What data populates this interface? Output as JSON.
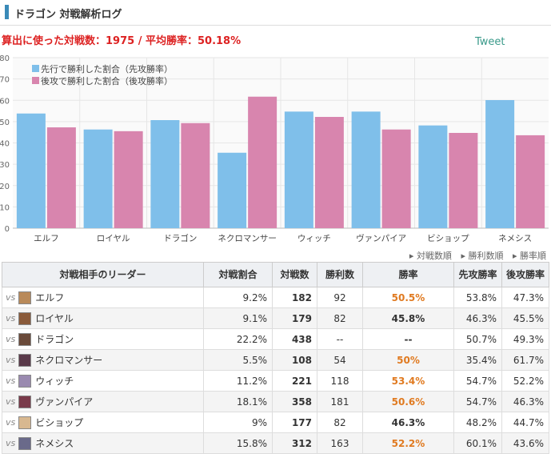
{
  "header": {
    "title": "ドラゴン 対戦解析ログ"
  },
  "summary": {
    "text": "算出に使った対戦数：1975 / 平均勝率：50.18%"
  },
  "tweet_label": "Tweet",
  "sort_links": [
    "対戦数順",
    "勝利数順",
    "勝率順"
  ],
  "colors": {
    "first": "#7fbfea",
    "second": "#d885ae",
    "highlight": "#e07a20"
  },
  "chart_data": {
    "type": "bar",
    "categories": [
      "エルフ",
      "ロイヤル",
      "ドラゴン",
      "ネクロマンサー",
      "ウィッチ",
      "ヴァンパイア",
      "ビショップ",
      "ネメシス"
    ],
    "series": [
      {
        "name": "先行で勝利した割合（先攻勝率）",
        "values": [
          53.8,
          46.3,
          50.7,
          35.4,
          54.7,
          54.7,
          48.2,
          60.1
        ]
      },
      {
        "name": "後攻で勝利した割合（後攻勝率）",
        "values": [
          47.3,
          45.5,
          49.3,
          61.7,
          52.2,
          46.3,
          44.7,
          43.6
        ]
      }
    ],
    "ylim": [
      0,
      80
    ],
    "yticks": [
      0,
      10,
      20,
      30,
      40,
      50,
      60,
      70,
      80
    ],
    "grid": true,
    "legend": "top-left"
  },
  "table": {
    "headers": [
      "対戦相手のリーダー",
      "対戦割合",
      "対戦数",
      "勝利数",
      "勝率",
      "先攻勝率",
      "後攻勝率"
    ],
    "vs_label": "vs",
    "rows": [
      {
        "leader": "エルフ",
        "ratio": "9.2%",
        "games": "182",
        "wins": "92",
        "winrate": "50.5%",
        "first": "53.8%",
        "second": "47.3%",
        "hi": true,
        "avatar": "#b98a5a"
      },
      {
        "leader": "ロイヤル",
        "ratio": "9.1%",
        "games": "179",
        "wins": "82",
        "winrate": "45.8%",
        "first": "46.3%",
        "second": "45.5%",
        "hi": false,
        "avatar": "#8a5a3a"
      },
      {
        "leader": "ドラゴン",
        "ratio": "22.2%",
        "games": "438",
        "wins": "--",
        "winrate": "--",
        "first": "50.7%",
        "second": "49.3%",
        "hi": false,
        "avatar": "#6a4a3a"
      },
      {
        "leader": "ネクロマンサー",
        "ratio": "5.5%",
        "games": "108",
        "wins": "54",
        "winrate": "50%",
        "first": "35.4%",
        "second": "61.7%",
        "hi": true,
        "avatar": "#5a3a4a"
      },
      {
        "leader": "ウィッチ",
        "ratio": "11.2%",
        "games": "221",
        "wins": "118",
        "winrate": "53.4%",
        "first": "54.7%",
        "second": "52.2%",
        "hi": true,
        "avatar": "#9a8ab0"
      },
      {
        "leader": "ヴァンパイア",
        "ratio": "18.1%",
        "games": "358",
        "wins": "181",
        "winrate": "50.6%",
        "first": "54.7%",
        "second": "46.3%",
        "hi": true,
        "avatar": "#7a3a4a"
      },
      {
        "leader": "ビショップ",
        "ratio": "9%",
        "games": "177",
        "wins": "82",
        "winrate": "46.3%",
        "first": "48.2%",
        "second": "44.7%",
        "hi": false,
        "avatar": "#d8b890"
      },
      {
        "leader": "ネメシス",
        "ratio": "15.8%",
        "games": "312",
        "wins": "163",
        "winrate": "52.2%",
        "first": "60.1%",
        "second": "43.6%",
        "hi": true,
        "avatar": "#6a6a8a"
      }
    ]
  }
}
